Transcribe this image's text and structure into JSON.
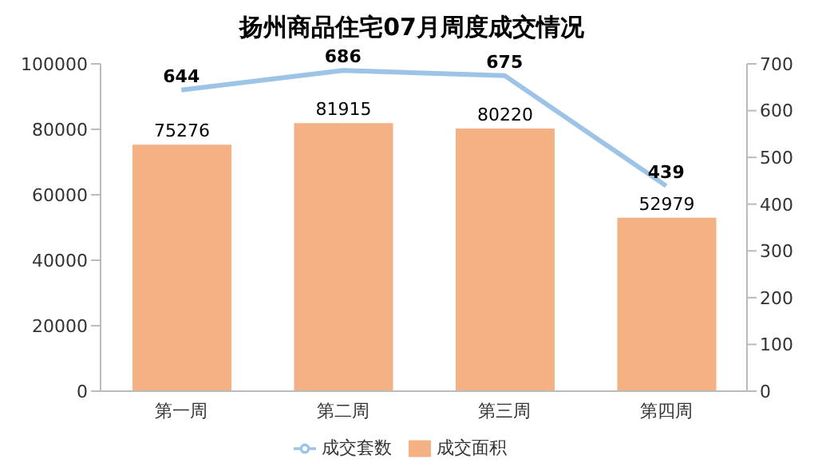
{
  "chart_data": {
    "type": "bar",
    "title": "扬州商品住宅07月周度成交情况",
    "categories": [
      "第一周",
      "第二周",
      "第三周",
      "第四周"
    ],
    "series": [
      {
        "name": "成交面积",
        "color": "#f4b183",
        "values": [
          75276,
          81915,
          80220,
          52979
        ]
      },
      {
        "name": "成交套数",
        "type": "line",
        "axis": "y2",
        "color": "#9dc3e6",
        "values": [
          644,
          686,
          675,
          439
        ]
      }
    ],
    "ylim": [
      0,
      100000
    ],
    "yticks": [
      0,
      20000,
      40000,
      60000,
      80000,
      100000
    ],
    "y2lim": [
      0,
      700
    ],
    "y2ticks": [
      0,
      100,
      200,
      300,
      400,
      500,
      600,
      700
    ],
    "data_labels": true,
    "legend": "bottom",
    "grid": false,
    "marker": "none",
    "line_style": "solid"
  }
}
